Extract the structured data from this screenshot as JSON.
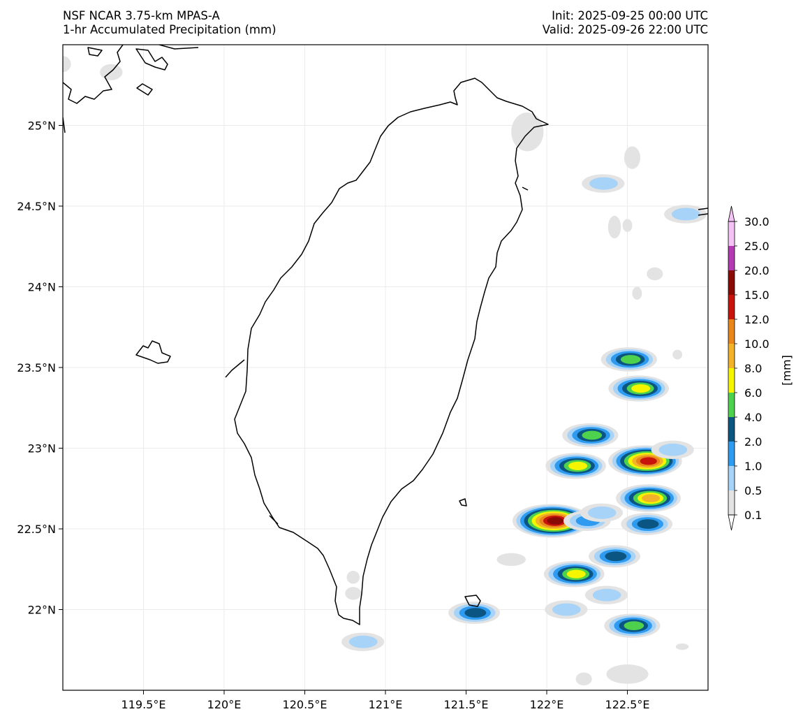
{
  "header": {
    "model_name": "NSF NCAR 3.75-km MPAS-A",
    "field_name": "1-hr Accumulated Precipitation (mm)",
    "init_time": "Init: 2025-09-25 00:00 UTC",
    "valid_time": "Valid: 2025-09-26 22:00 UTC"
  },
  "map": {
    "projection": "PlateCarree",
    "lon_range": [
      119.0,
      123.0
    ],
    "lat_range": [
      21.5,
      25.5
    ],
    "gridlines": true,
    "lon_ticks": [
      {
        "value": 119.5,
        "label": "119.5°E"
      },
      {
        "value": 120.0,
        "label": "120°E"
      },
      {
        "value": 120.5,
        "label": "120.5°E"
      },
      {
        "value": 121.0,
        "label": "121°E"
      },
      {
        "value": 121.5,
        "label": "121.5°E"
      },
      {
        "value": 122.0,
        "label": "122°E"
      },
      {
        "value": 122.5,
        "label": "122.5°E"
      }
    ],
    "lat_ticks": [
      {
        "value": 25.0,
        "label": "25°N"
      },
      {
        "value": 24.5,
        "label": "24.5°N"
      },
      {
        "value": 24.0,
        "label": "24°N"
      },
      {
        "value": 23.5,
        "label": "23.5°N"
      },
      {
        "value": 23.0,
        "label": "23°N"
      },
      {
        "value": 22.5,
        "label": "22.5°N"
      },
      {
        "value": 22.0,
        "label": "22°N"
      }
    ]
  },
  "colorbar": {
    "unit_label": "[mm]",
    "levels": [
      "0.1",
      "0.5",
      "1.0",
      "2.0",
      "4.0",
      "6.0",
      "8.0",
      "10.0",
      "12.0",
      "15.0",
      "20.0",
      "25.0",
      "30.0"
    ],
    "colors": [
      "#e3e3e3",
      "#a6d3f7",
      "#2e9bf0",
      "#0b5583",
      "#4ed24e",
      "#f5f500",
      "#f2b22a",
      "#e8861c",
      "#c8120c",
      "#8a0a06",
      "#b33ab3",
      "#f5c2f5"
    ],
    "extend": "both"
  },
  "precip_cells": [
    {
      "lon": 122.03,
      "lat": 22.55,
      "peak_level": 9
    },
    {
      "lon": 122.17,
      "lat": 22.22,
      "peak_level": 5
    },
    {
      "lon": 122.18,
      "lat": 22.89,
      "peak_level": 5
    },
    {
      "lon": 122.27,
      "lat": 23.08,
      "peak_level": 4
    },
    {
      "lon": 122.51,
      "lat": 23.55,
      "peak_level": 4
    },
    {
      "lon": 122.57,
      "lat": 23.37,
      "peak_level": 5
    },
    {
      "lon": 122.61,
      "lat": 22.92,
      "peak_level": 8
    },
    {
      "lon": 122.63,
      "lat": 22.69,
      "peak_level": 6
    },
    {
      "lon": 122.53,
      "lat": 21.9,
      "peak_level": 4
    },
    {
      "lon": 121.55,
      "lat": 21.98,
      "peak_level": 3
    },
    {
      "lon": 122.42,
      "lat": 22.33,
      "peak_level": 3
    },
    {
      "lon": 122.62,
      "lat": 22.53,
      "peak_level": 3
    },
    {
      "lon": 122.25,
      "lat": 22.55,
      "peak_level": 2
    },
    {
      "lon": 122.12,
      "lat": 22.0,
      "peak_level": 1
    },
    {
      "lon": 122.34,
      "lat": 22.6,
      "peak_level": 1
    },
    {
      "lon": 120.86,
      "lat": 21.8,
      "peak_level": 1
    },
    {
      "lon": 122.35,
      "lat": 24.64,
      "peak_level": 1
    },
    {
      "lon": 122.86,
      "lat": 24.45,
      "peak_level": 1
    },
    {
      "lon": 122.78,
      "lat": 22.99,
      "peak_level": 1
    },
    {
      "lon": 122.37,
      "lat": 22.09,
      "peak_level": 1
    }
  ],
  "light_precip": [
    {
      "lon": 121.88,
      "lat": 24.96,
      "rx": 0.1,
      "ry": 0.12
    },
    {
      "lon": 122.53,
      "lat": 24.8,
      "rx": 0.05,
      "ry": 0.07
    },
    {
      "lon": 122.42,
      "lat": 24.37,
      "rx": 0.04,
      "ry": 0.07
    },
    {
      "lon": 122.5,
      "lat": 24.38,
      "rx": 0.03,
      "ry": 0.04
    },
    {
      "lon": 122.67,
      "lat": 24.08,
      "rx": 0.05,
      "ry": 0.04
    },
    {
      "lon": 122.56,
      "lat": 23.96,
      "rx": 0.03,
      "ry": 0.04
    },
    {
      "lon": 122.81,
      "lat": 23.58,
      "rx": 0.03,
      "ry": 0.03
    },
    {
      "lon": 121.78,
      "lat": 22.31,
      "rx": 0.09,
      "ry": 0.04
    },
    {
      "lon": 122.5,
      "lat": 21.6,
      "rx": 0.13,
      "ry": 0.06
    },
    {
      "lon": 122.23,
      "lat": 21.57,
      "rx": 0.05,
      "ry": 0.04
    },
    {
      "lon": 120.8,
      "lat": 22.1,
      "rx": 0.05,
      "ry": 0.04
    },
    {
      "lon": 120.8,
      "lat": 22.2,
      "rx": 0.04,
      "ry": 0.04
    },
    {
      "lon": 119.0,
      "lat": 25.38,
      "rx": 0.05,
      "ry": 0.05
    },
    {
      "lon": 119.3,
      "lat": 25.33,
      "rx": 0.07,
      "ry": 0.05
    },
    {
      "lon": 122.84,
      "lat": 21.77,
      "rx": 0.04,
      "ry": 0.02
    }
  ]
}
